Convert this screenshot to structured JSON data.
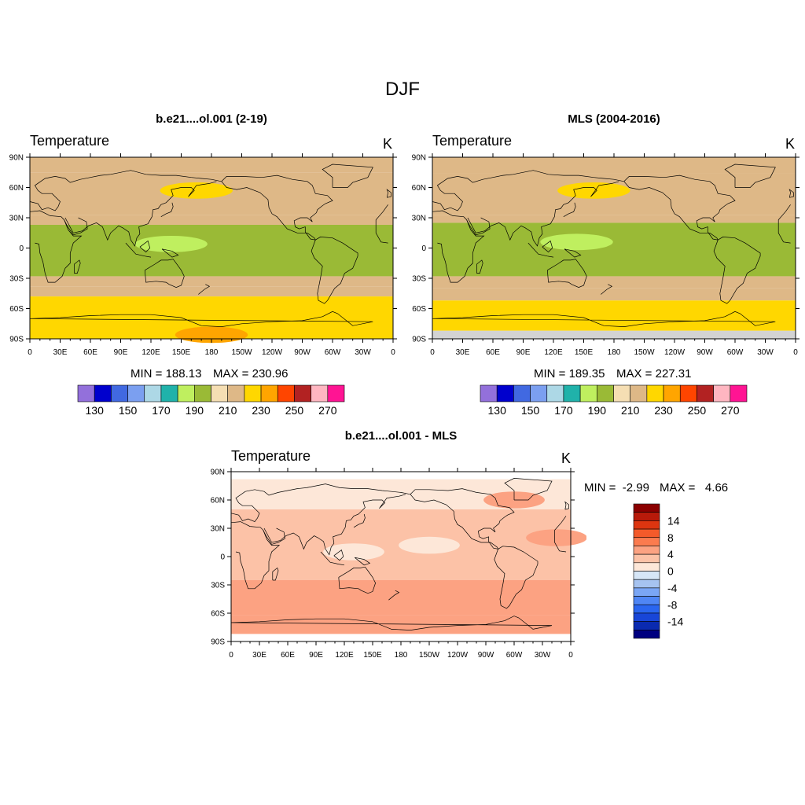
{
  "figure": {
    "title": "DJF"
  },
  "colors": {
    "abs_levels": [
      "#9370db",
      "#0000cd",
      "#4169e1",
      "#7b9ff0",
      "#add8e6",
      "#20b2aa",
      "#bfef5f",
      "#9aba36",
      "#f5deb3",
      "#deb887",
      "#ffd700",
      "#ffa500",
      "#ff4500",
      "#b22222",
      "#ffb6c1",
      "#ff1493"
    ],
    "diff_levels": [
      "#000080",
      "#0a2ab0",
      "#1846d8",
      "#2a66f0",
      "#4f86f5",
      "#7aa6f5",
      "#a6c3f0",
      "#d6e6f7",
      "#fde7d8",
      "#fcc2a7",
      "#fca282",
      "#fb7b4f",
      "#f45a2a",
      "#dd3510",
      "#b81a0a",
      "#8b0000"
    ],
    "land_mask": "#d3d3d3"
  },
  "panels": {
    "model": {
      "title": "b.e21....ol.001 (2-19)",
      "variable": "Temperature",
      "units": "K",
      "min_label": "MIN = 188.13",
      "max_label": "MAX = 230.96"
    },
    "obs": {
      "title": "MLS (2004-2016)",
      "variable": "Temperature",
      "units": "K",
      "min_label": "MIN = 189.35",
      "max_label": "MAX = 227.31"
    },
    "diff": {
      "title": "b.e21....ol.001 - MLS",
      "variable": "Temperature",
      "units": "K",
      "min_label": "MIN =  -2.99",
      "max_label": "MAX =   4.66"
    }
  },
  "chart_data": [
    {
      "type": "heatmap",
      "id": "model",
      "title": "b.e21....ol.001 (2-19)",
      "xlabel": "",
      "ylabel": "",
      "xlim": [
        0,
        360
      ],
      "ylim": [
        -90,
        90
      ],
      "lon_ticks": [
        "0",
        "30E",
        "60E",
        "90E",
        "120E",
        "150E",
        "180",
        "150W",
        "120W",
        "90W",
        "60W",
        "30W",
        "0"
      ],
      "lat_ticks": [
        "90N",
        "60N",
        "30N",
        "0",
        "30S",
        "60S",
        "90S"
      ],
      "colorbar_labels": [
        "130",
        "150",
        "170",
        "190",
        "210",
        "230",
        "250",
        "270"
      ],
      "bands": [
        {
          "lat_top": 90,
          "lat_bottom": 75,
          "value": 210
        },
        {
          "lat_top": 75,
          "lat_bottom": 33,
          "value": 215
        },
        {
          "lat_top": 33,
          "lat_bottom": 23,
          "value": 210
        },
        {
          "lat_top": 23,
          "lat_bottom": -28,
          "value": 195
        },
        {
          "lat_top": -28,
          "lat_bottom": -38,
          "value": 210
        },
        {
          "lat_top": -38,
          "lat_bottom": -48,
          "value": 215
        },
        {
          "lat_top": -48,
          "lat_bottom": -90,
          "value": 225
        }
      ],
      "anomalies": [
        {
          "lon": 140,
          "lat": 4,
          "value": 185
        },
        {
          "lon": 165,
          "lat": 57,
          "value": 225
        },
        {
          "lon": 180,
          "lat": -86,
          "value": 235
        }
      ],
      "min": 188.13,
      "max": 230.96
    },
    {
      "type": "heatmap",
      "id": "obs",
      "title": "MLS (2004-2016)",
      "xlabel": "",
      "ylabel": "",
      "xlim": [
        0,
        360
      ],
      "ylim": [
        -90,
        90
      ],
      "lon_ticks": [
        "0",
        "30E",
        "60E",
        "90E",
        "120E",
        "150E",
        "180",
        "150W",
        "120W",
        "90W",
        "60W",
        "30W",
        "0"
      ],
      "lat_ticks": [
        "90N",
        "60N",
        "30N",
        "0",
        "30S",
        "60S",
        "90S"
      ],
      "colorbar_labels": [
        "130",
        "150",
        "170",
        "190",
        "210",
        "230",
        "250",
        "270"
      ],
      "bands": [
        {
          "lat_top": 90,
          "lat_bottom": 74,
          "value": 210
        },
        {
          "lat_top": 74,
          "lat_bottom": 33,
          "value": 215
        },
        {
          "lat_top": 33,
          "lat_bottom": 25,
          "value": 210
        },
        {
          "lat_top": 25,
          "lat_bottom": -28,
          "value": 195
        },
        {
          "lat_top": -28,
          "lat_bottom": -40,
          "value": 210
        },
        {
          "lat_top": -40,
          "lat_bottom": -52,
          "value": 215
        },
        {
          "lat_top": -52,
          "lat_bottom": -82,
          "value": 225
        },
        {
          "lat_top": -82,
          "lat_bottom": -90,
          "value": "missing"
        }
      ],
      "anomalies": [
        {
          "lon": 143,
          "lat": 6,
          "value": 185
        },
        {
          "lon": 160,
          "lat": 57,
          "value": 225
        }
      ],
      "min": 189.35,
      "max": 227.31
    },
    {
      "type": "heatmap",
      "id": "diff",
      "title": "b.e21....ol.001 - MLS",
      "xlabel": "",
      "ylabel": "",
      "xlim": [
        0,
        360
      ],
      "ylim": [
        -90,
        90
      ],
      "lon_ticks": [
        "0",
        "30E",
        "60E",
        "90E",
        "120E",
        "150E",
        "180",
        "150W",
        "120W",
        "90W",
        "60W",
        "30W",
        "0"
      ],
      "lat_ticks": [
        "90N",
        "60N",
        "30N",
        "0",
        "30S",
        "60S",
        "90S"
      ],
      "colorbar_labels": [
        "14",
        "8",
        "4",
        "0",
        "-4",
        "-8",
        "-14"
      ],
      "bands": [
        {
          "lat_top": 82,
          "lat_bottom": 50,
          "value": -1
        },
        {
          "lat_top": 50,
          "lat_bottom": -25,
          "value": 1
        },
        {
          "lat_top": -25,
          "lat_bottom": -45,
          "value": 2
        },
        {
          "lat_top": -45,
          "lat_bottom": -62,
          "value": 3
        },
        {
          "lat_top": -62,
          "lat_bottom": -70,
          "value": 2
        },
        {
          "lat_top": -70,
          "lat_bottom": -82,
          "value": 3
        }
      ],
      "anomalies": [
        {
          "lon": 130,
          "lat": 5,
          "value": -1
        },
        {
          "lon": 210,
          "lat": 12,
          "value": -1
        },
        {
          "lon": 185,
          "lat": 68,
          "value": -1
        },
        {
          "lon": 300,
          "lat": 60,
          "value": 2
        },
        {
          "lon": 345,
          "lat": 20,
          "value": 2
        }
      ],
      "min": -2.99,
      "max": 4.66
    }
  ]
}
